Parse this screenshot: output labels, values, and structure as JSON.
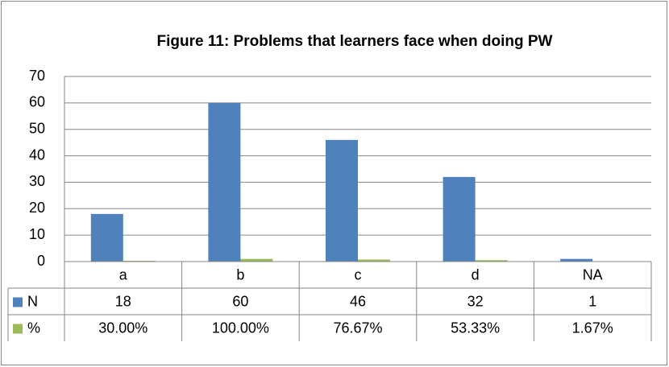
{
  "chart_data": {
    "type": "bar",
    "title": "Figure 11: Problems that learners face when doing PW",
    "categories": [
      "a",
      "b",
      "c",
      "d",
      "NA"
    ],
    "series": [
      {
        "name": "N",
        "color": "#4f81bd",
        "values": [
          18,
          60,
          46,
          32,
          1
        ]
      },
      {
        "name": "%",
        "color": "#9bbb59",
        "values": [
          0.3,
          1,
          0.7667,
          0.5333,
          0.0167
        ],
        "value_labels": [
          "30.00%",
          "100.00%",
          "76.67%",
          "53.33%",
          "1.67%"
        ]
      }
    ],
    "ylim": [
      0,
      70
    ],
    "yticks": [
      0,
      10,
      20,
      30,
      40,
      50,
      60,
      70
    ],
    "grid": true
  }
}
